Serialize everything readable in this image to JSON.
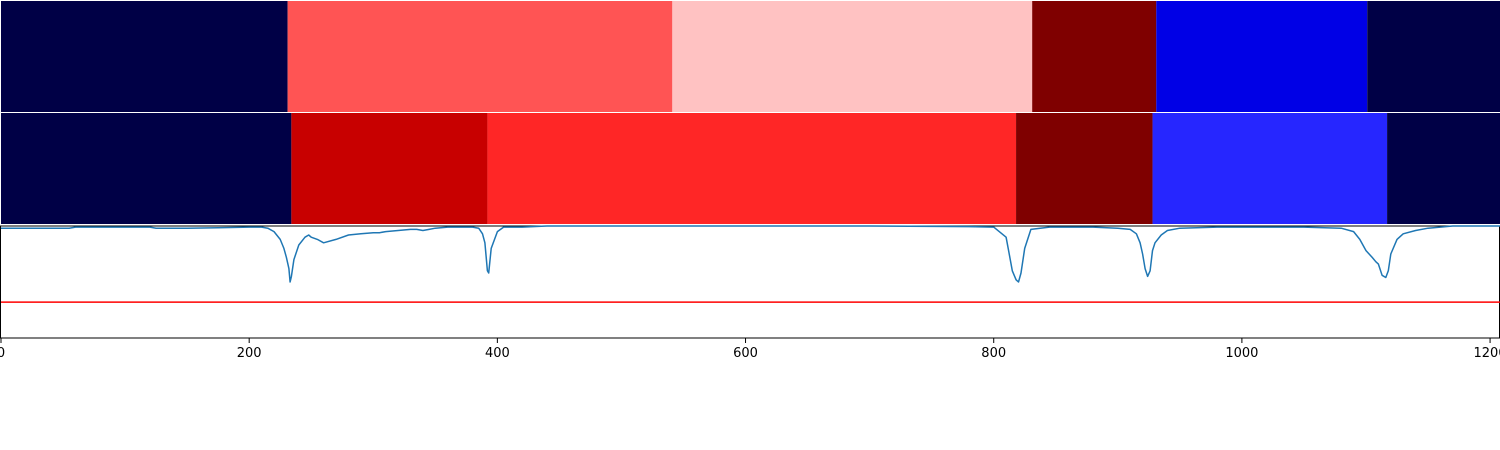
{
  "chart_data": {
    "type": "heatmap",
    "xlim": [
      0,
      1208
    ],
    "xticks": [
      {
        "value": 0,
        "label": "0"
      },
      {
        "value": 200,
        "label": "200"
      },
      {
        "value": 400,
        "label": "400"
      },
      {
        "value": 600,
        "label": "600"
      },
      {
        "value": 800,
        "label": "800"
      },
      {
        "value": 1000,
        "label": "1000"
      },
      {
        "value": 1200,
        "label": "1200"
      }
    ],
    "segment_rows": [
      {
        "segments": [
          {
            "start": 0,
            "end": 231,
            "color": "#000046"
          },
          {
            "start": 231,
            "end": 541,
            "color": "#ff5454"
          },
          {
            "start": 541,
            "end": 831,
            "color": "#ffc2c2"
          },
          {
            "start": 831,
            "end": 931,
            "color": "#7f0000"
          },
          {
            "start": 931,
            "end": 1101,
            "color": "#0000e6"
          },
          {
            "start": 1101,
            "end": 1208,
            "color": "#000046"
          }
        ]
      },
      {
        "segments": [
          {
            "start": 0,
            "end": 234,
            "color": "#000046"
          },
          {
            "start": 234,
            "end": 392,
            "color": "#c80000"
          },
          {
            "start": 392,
            "end": 818,
            "color": "#ff2626"
          },
          {
            "start": 818,
            "end": 928,
            "color": "#7f0000"
          },
          {
            "start": 928,
            "end": 1117,
            "color": "#2626ff"
          },
          {
            "start": 1117,
            "end": 1208,
            "color": "#000046"
          }
        ]
      }
    ],
    "line_panel": {
      "ylim": [
        0,
        1
      ],
      "threshold": {
        "value": 0.32,
        "color": "#ff0000"
      },
      "series": [
        {
          "color": "#1f77b4",
          "x": [
            0,
            20,
            40,
            55,
            60,
            80,
            100,
            120,
            125,
            150,
            175,
            200,
            210,
            215,
            220,
            225,
            228,
            230,
            232,
            233,
            234,
            236,
            240,
            245,
            248,
            250,
            255,
            260,
            270,
            280,
            290,
            300,
            305,
            310,
            320,
            330,
            335,
            340,
            345,
            350,
            360,
            370,
            380,
            385,
            388,
            390,
            392,
            393,
            395,
            400,
            405,
            420,
            440,
            500,
            600,
            700,
            780,
            800,
            810,
            812,
            815,
            818,
            820,
            822,
            825,
            830,
            845,
            860,
            880,
            900,
            910,
            915,
            918,
            920,
            922,
            924,
            926,
            928,
            930,
            935,
            940,
            950,
            980,
            1050,
            1080,
            1090,
            1095,
            1100,
            1105,
            1108,
            1110,
            1113,
            1116,
            1118,
            1120,
            1125,
            1130,
            1140,
            1150,
            1160,
            1170,
            1180,
            1190,
            1200,
            1208
          ],
          "y": [
            0.98,
            0.98,
            0.98,
            0.98,
            0.99,
            0.99,
            0.99,
            0.99,
            0.98,
            0.98,
            0.985,
            0.99,
            0.99,
            0.98,
            0.95,
            0.88,
            0.8,
            0.72,
            0.62,
            0.5,
            0.55,
            0.7,
            0.83,
            0.9,
            0.92,
            0.9,
            0.88,
            0.85,
            0.88,
            0.92,
            0.93,
            0.94,
            0.94,
            0.95,
            0.96,
            0.97,
            0.97,
            0.96,
            0.97,
            0.98,
            0.99,
            0.99,
            0.99,
            0.98,
            0.93,
            0.85,
            0.6,
            0.58,
            0.8,
            0.95,
            0.99,
            0.99,
            1.0,
            1.0,
            1.0,
            1.0,
            0.995,
            0.99,
            0.9,
            0.78,
            0.6,
            0.52,
            0.5,
            0.58,
            0.8,
            0.97,
            0.99,
            0.99,
            0.99,
            0.98,
            0.97,
            0.93,
            0.85,
            0.75,
            0.62,
            0.55,
            0.6,
            0.78,
            0.85,
            0.92,
            0.96,
            0.98,
            0.99,
            0.99,
            0.98,
            0.95,
            0.88,
            0.78,
            0.72,
            0.68,
            0.66,
            0.56,
            0.54,
            0.6,
            0.75,
            0.88,
            0.93,
            0.96,
            0.98,
            0.99,
            1.0,
            1.0,
            1.0,
            1.0,
            1.0
          ]
        }
      ]
    }
  }
}
